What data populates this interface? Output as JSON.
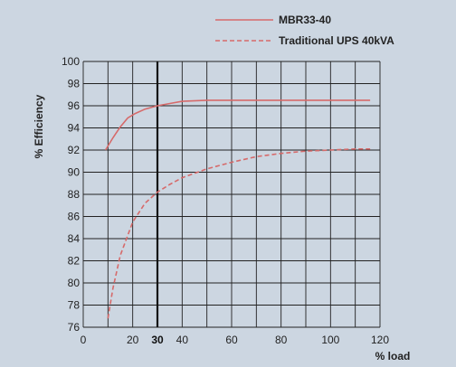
{
  "chart_data": {
    "type": "line",
    "title": "",
    "xlabel": "% load",
    "ylabel": "% Efficiency",
    "xlim": [
      0,
      120
    ],
    "ylim": [
      76,
      100
    ],
    "xticks": [
      0,
      20,
      30,
      40,
      60,
      80,
      100,
      120
    ],
    "yticks": [
      76,
      78,
      80,
      82,
      84,
      86,
      88,
      90,
      92,
      94,
      96,
      98,
      100
    ],
    "highlight_x": 30,
    "grid": true,
    "legend_position": "top-right",
    "series": [
      {
        "name": "MBR33-40",
        "style": "solid",
        "color": "#d66a6a",
        "x": [
          9,
          12,
          15,
          18,
          21,
          25,
          30,
          35,
          40,
          50,
          60,
          70,
          80,
          90,
          100,
          110,
          116
        ],
        "y": [
          92.0,
          93.1,
          94.1,
          94.9,
          95.3,
          95.7,
          96.0,
          96.2,
          96.4,
          96.5,
          96.5,
          96.5,
          96.5,
          96.5,
          96.5,
          96.5,
          96.5
        ]
      },
      {
        "name": "Traditional UPS 40kVA",
        "style": "dashed",
        "color": "#d66a6a",
        "x": [
          10,
          12,
          15,
          20,
          25,
          30,
          35,
          40,
          50,
          60,
          70,
          80,
          90,
          100,
          110,
          116
        ],
        "y": [
          76.8,
          79.5,
          82.5,
          85.5,
          87.2,
          88.2,
          88.9,
          89.5,
          90.3,
          90.9,
          91.4,
          91.7,
          91.9,
          92.0,
          92.1,
          92.1
        ]
      }
    ]
  }
}
